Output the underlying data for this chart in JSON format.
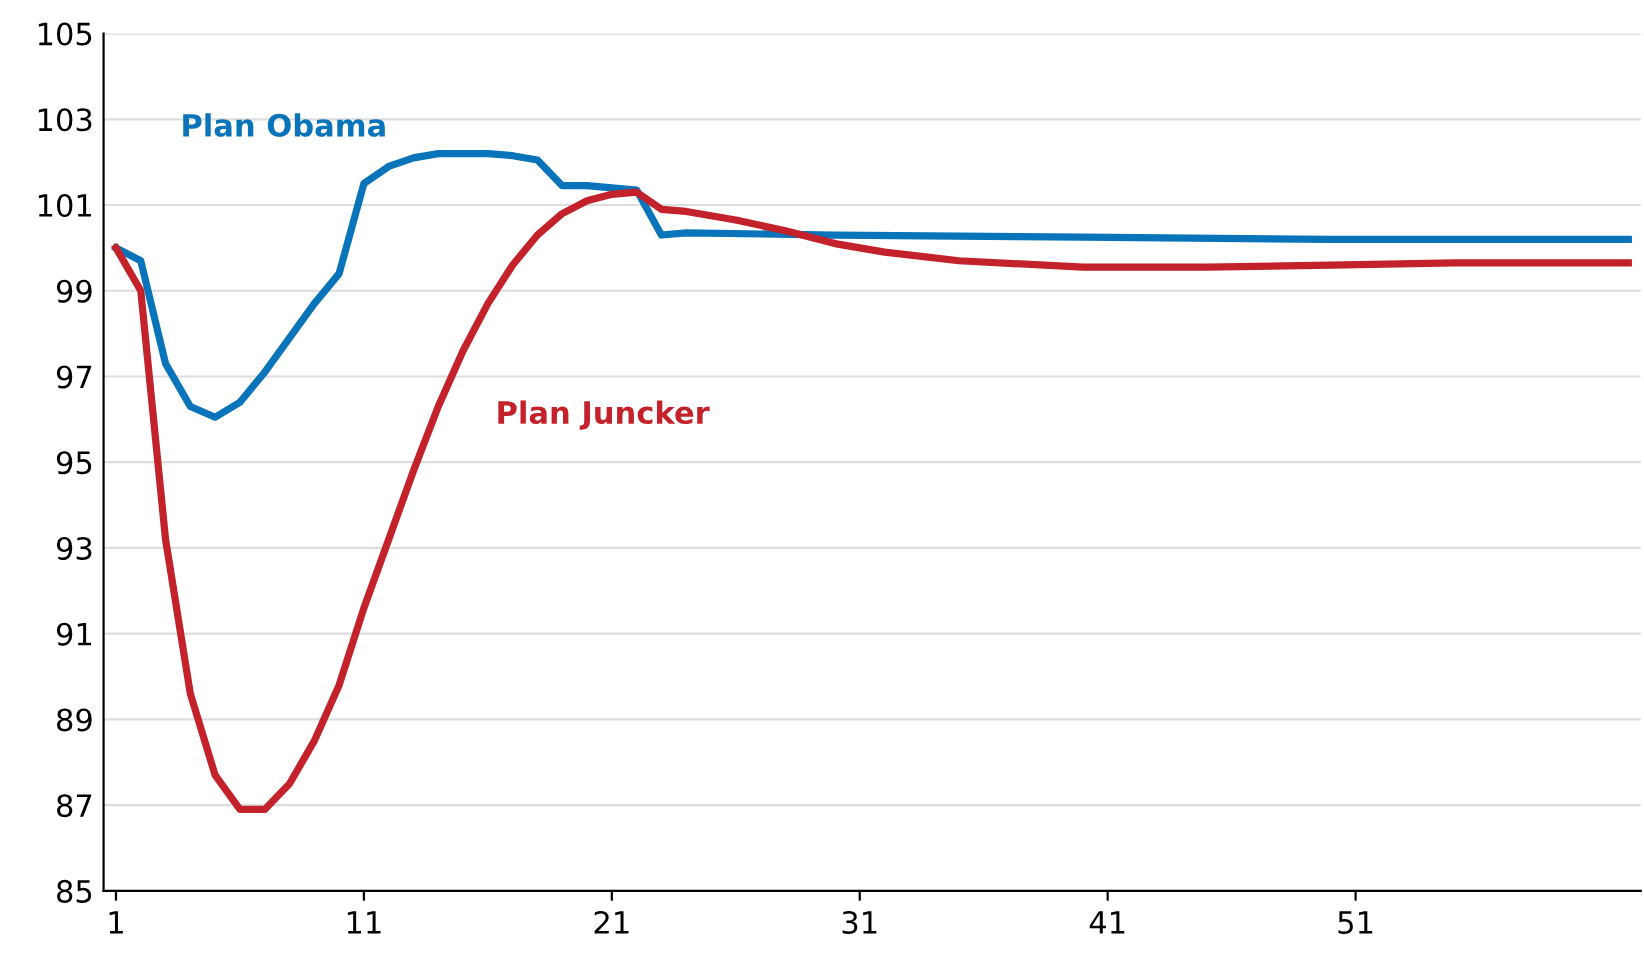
{
  "chart_data": {
    "type": "line",
    "xlim": [
      0.5,
      62.5
    ],
    "xticks": [
      1,
      11,
      21,
      31,
      41,
      51
    ],
    "ylim": [
      85,
      105
    ],
    "yticks": [
      85,
      87,
      89,
      91,
      93,
      95,
      97,
      99,
      101,
      103,
      105
    ],
    "grid": "y",
    "legend": false,
    "marker": "none",
    "line_style": "solid",
    "series": [
      {
        "name": "Plan Obama",
        "color": "#0a74ba",
        "x": [
          1,
          2,
          3,
          4,
          5,
          6,
          7,
          8,
          9,
          10,
          11,
          12,
          13,
          14,
          15,
          16,
          17,
          18,
          19,
          20,
          21,
          22,
          23,
          24,
          30,
          40,
          50,
          62
        ],
        "values": [
          100,
          99.7,
          97.3,
          96.3,
          96.05,
          96.4,
          97.1,
          97.9,
          98.7,
          99.4,
          101.5,
          101.9,
          102.1,
          102.2,
          102.2,
          102.2,
          102.15,
          102.05,
          101.45,
          101.45,
          101.4,
          101.35,
          100.3,
          100.35,
          100.3,
          100.25,
          100.2,
          100.2
        ]
      },
      {
        "name": "Plan Juncker",
        "color": "#c4222b",
        "x": [
          1,
          2,
          3,
          4,
          5,
          6,
          7,
          8,
          9,
          10,
          11,
          12,
          13,
          14,
          15,
          16,
          17,
          18,
          19,
          20,
          21,
          22,
          23,
          24,
          26,
          28,
          30,
          32,
          35,
          40,
          45,
          50,
          55,
          62
        ],
        "values": [
          100,
          99.0,
          93.2,
          89.6,
          87.7,
          86.9,
          86.9,
          87.5,
          88.5,
          89.8,
          91.6,
          93.2,
          94.8,
          96.3,
          97.6,
          98.7,
          99.6,
          100.3,
          100.8,
          101.1,
          101.25,
          101.3,
          100.9,
          100.85,
          100.65,
          100.4,
          100.1,
          99.9,
          99.7,
          99.55,
          99.55,
          99.6,
          99.65,
          99.65
        ]
      }
    ]
  }
}
